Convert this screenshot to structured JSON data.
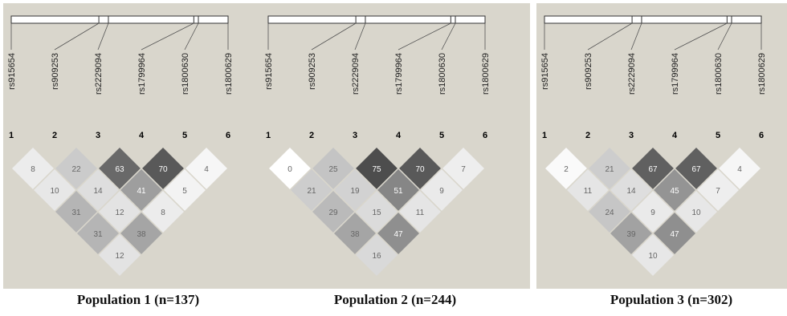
{
  "snps": [
    "rs915654",
    "rs909253",
    "rs2229094",
    "rs1799964",
    "rs1800630",
    "rs1800629"
  ],
  "indices": [
    "1",
    "2",
    "3",
    "4",
    "5",
    "6"
  ],
  "panels": [
    {
      "caption": "Population 1 (n=137)",
      "rows": [
        [
          "8",
          "22",
          "63",
          "70",
          "4"
        ],
        [
          "10",
          "14",
          "41",
          "5"
        ],
        [
          "31",
          "12",
          "8"
        ],
        [
          "31",
          "38"
        ],
        [
          "12"
        ]
      ]
    },
    {
      "caption": "Population 2 (n=244)",
      "rows": [
        [
          "0",
          "25",
          "75",
          "70",
          "7"
        ],
        [
          "21",
          "19",
          "51",
          "9"
        ],
        [
          "29",
          "15",
          "11"
        ],
        [
          "38",
          "47"
        ],
        [
          "16"
        ]
      ]
    },
    {
      "caption": "Population 3 (n=302)",
      "rows": [
        [
          "2",
          "21",
          "67",
          "67",
          "4"
        ],
        [
          "11",
          "14",
          "45",
          "7"
        ],
        [
          "24",
          "9",
          "10"
        ],
        [
          "39",
          "47"
        ],
        [
          "10"
        ]
      ]
    }
  ]
}
